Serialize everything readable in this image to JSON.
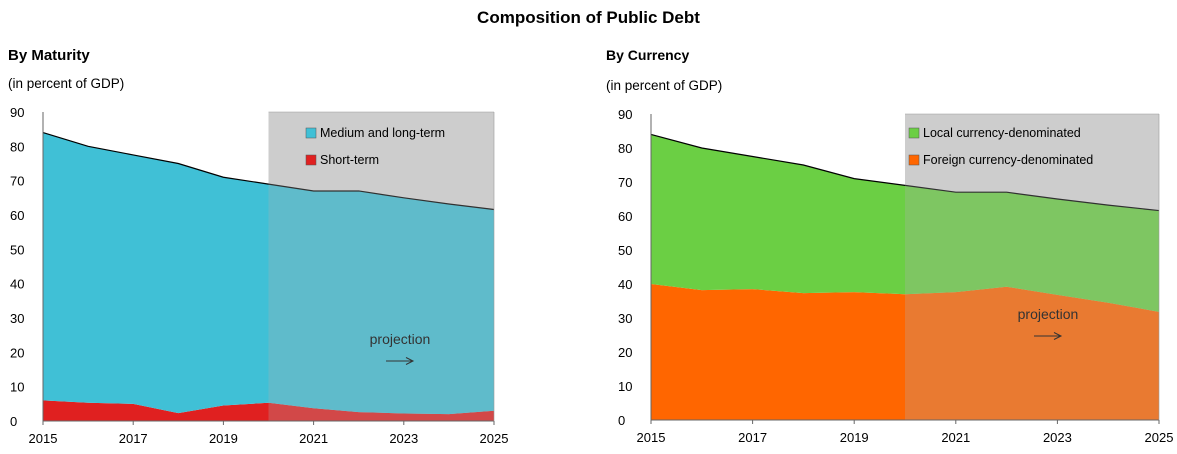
{
  "title": "Composition of Public Debt",
  "colors": {
    "medium_long": "#40C0D6",
    "short": "#E02020",
    "local": "#6BCF44",
    "foreign": "#FF6600",
    "projection_shade": "#D9D9D9"
  },
  "chart_data": [
    {
      "type": "area",
      "title": "By Maturity",
      "subtitle": "(in percent of GDP)",
      "x": [
        2015,
        2016,
        2017,
        2018,
        2019,
        2020,
        2021,
        2022,
        2023,
        2024,
        2025
      ],
      "xticks": [
        "2015",
        "2017",
        "2019",
        "2021",
        "2023",
        "2025"
      ],
      "yticks": [
        "0",
        "10",
        "20",
        "30",
        "40",
        "50",
        "60",
        "70",
        "80",
        "90"
      ],
      "ylim": [
        0,
        90
      ],
      "stacked": true,
      "series": [
        {
          "name": "Short-term",
          "values": [
            6,
            5.3,
            5,
            2.3,
            4.5,
            5.3,
            3.7,
            2.6,
            2.2,
            2,
            3
          ],
          "color_key": "short"
        },
        {
          "name": "Medium and long-term",
          "values": [
            78,
            74.7,
            72.5,
            72.7,
            66.5,
            63.7,
            63.3,
            64.4,
            62.8,
            61.2,
            58.6
          ],
          "color_key": "medium_long"
        }
      ],
      "projection_start": 2020,
      "annotation": "projection",
      "legend_position": "top-right",
      "grid": false
    },
    {
      "type": "area",
      "title": "By Currency",
      "subtitle": "(in percent of GDP)",
      "x": [
        2015,
        2016,
        2017,
        2018,
        2019,
        2020,
        2021,
        2022,
        2023,
        2024,
        2025
      ],
      "xticks": [
        "2015",
        "2017",
        "2019",
        "2021",
        "2023",
        "2025"
      ],
      "yticks": [
        "0",
        "10",
        "20",
        "30",
        "40",
        "50",
        "60",
        "70",
        "80",
        "90"
      ],
      "ylim": [
        0,
        90
      ],
      "stacked": true,
      "series": [
        {
          "name": "Foreign currency-denominated",
          "values": [
            40,
            38.2,
            38.5,
            37.3,
            37.6,
            37,
            37.6,
            39.2,
            36.8,
            34.5,
            31.8
          ],
          "color_key": "foreign"
        },
        {
          "name": "Local currency-denominated",
          "values": [
            44,
            41.8,
            39,
            37.7,
            33.4,
            32,
            29.4,
            27.8,
            28.2,
            28.7,
            29.8
          ],
          "color_key": "local"
        }
      ],
      "projection_start": 2020,
      "annotation": "projection",
      "legend_position": "top-right",
      "grid": false
    }
  ]
}
